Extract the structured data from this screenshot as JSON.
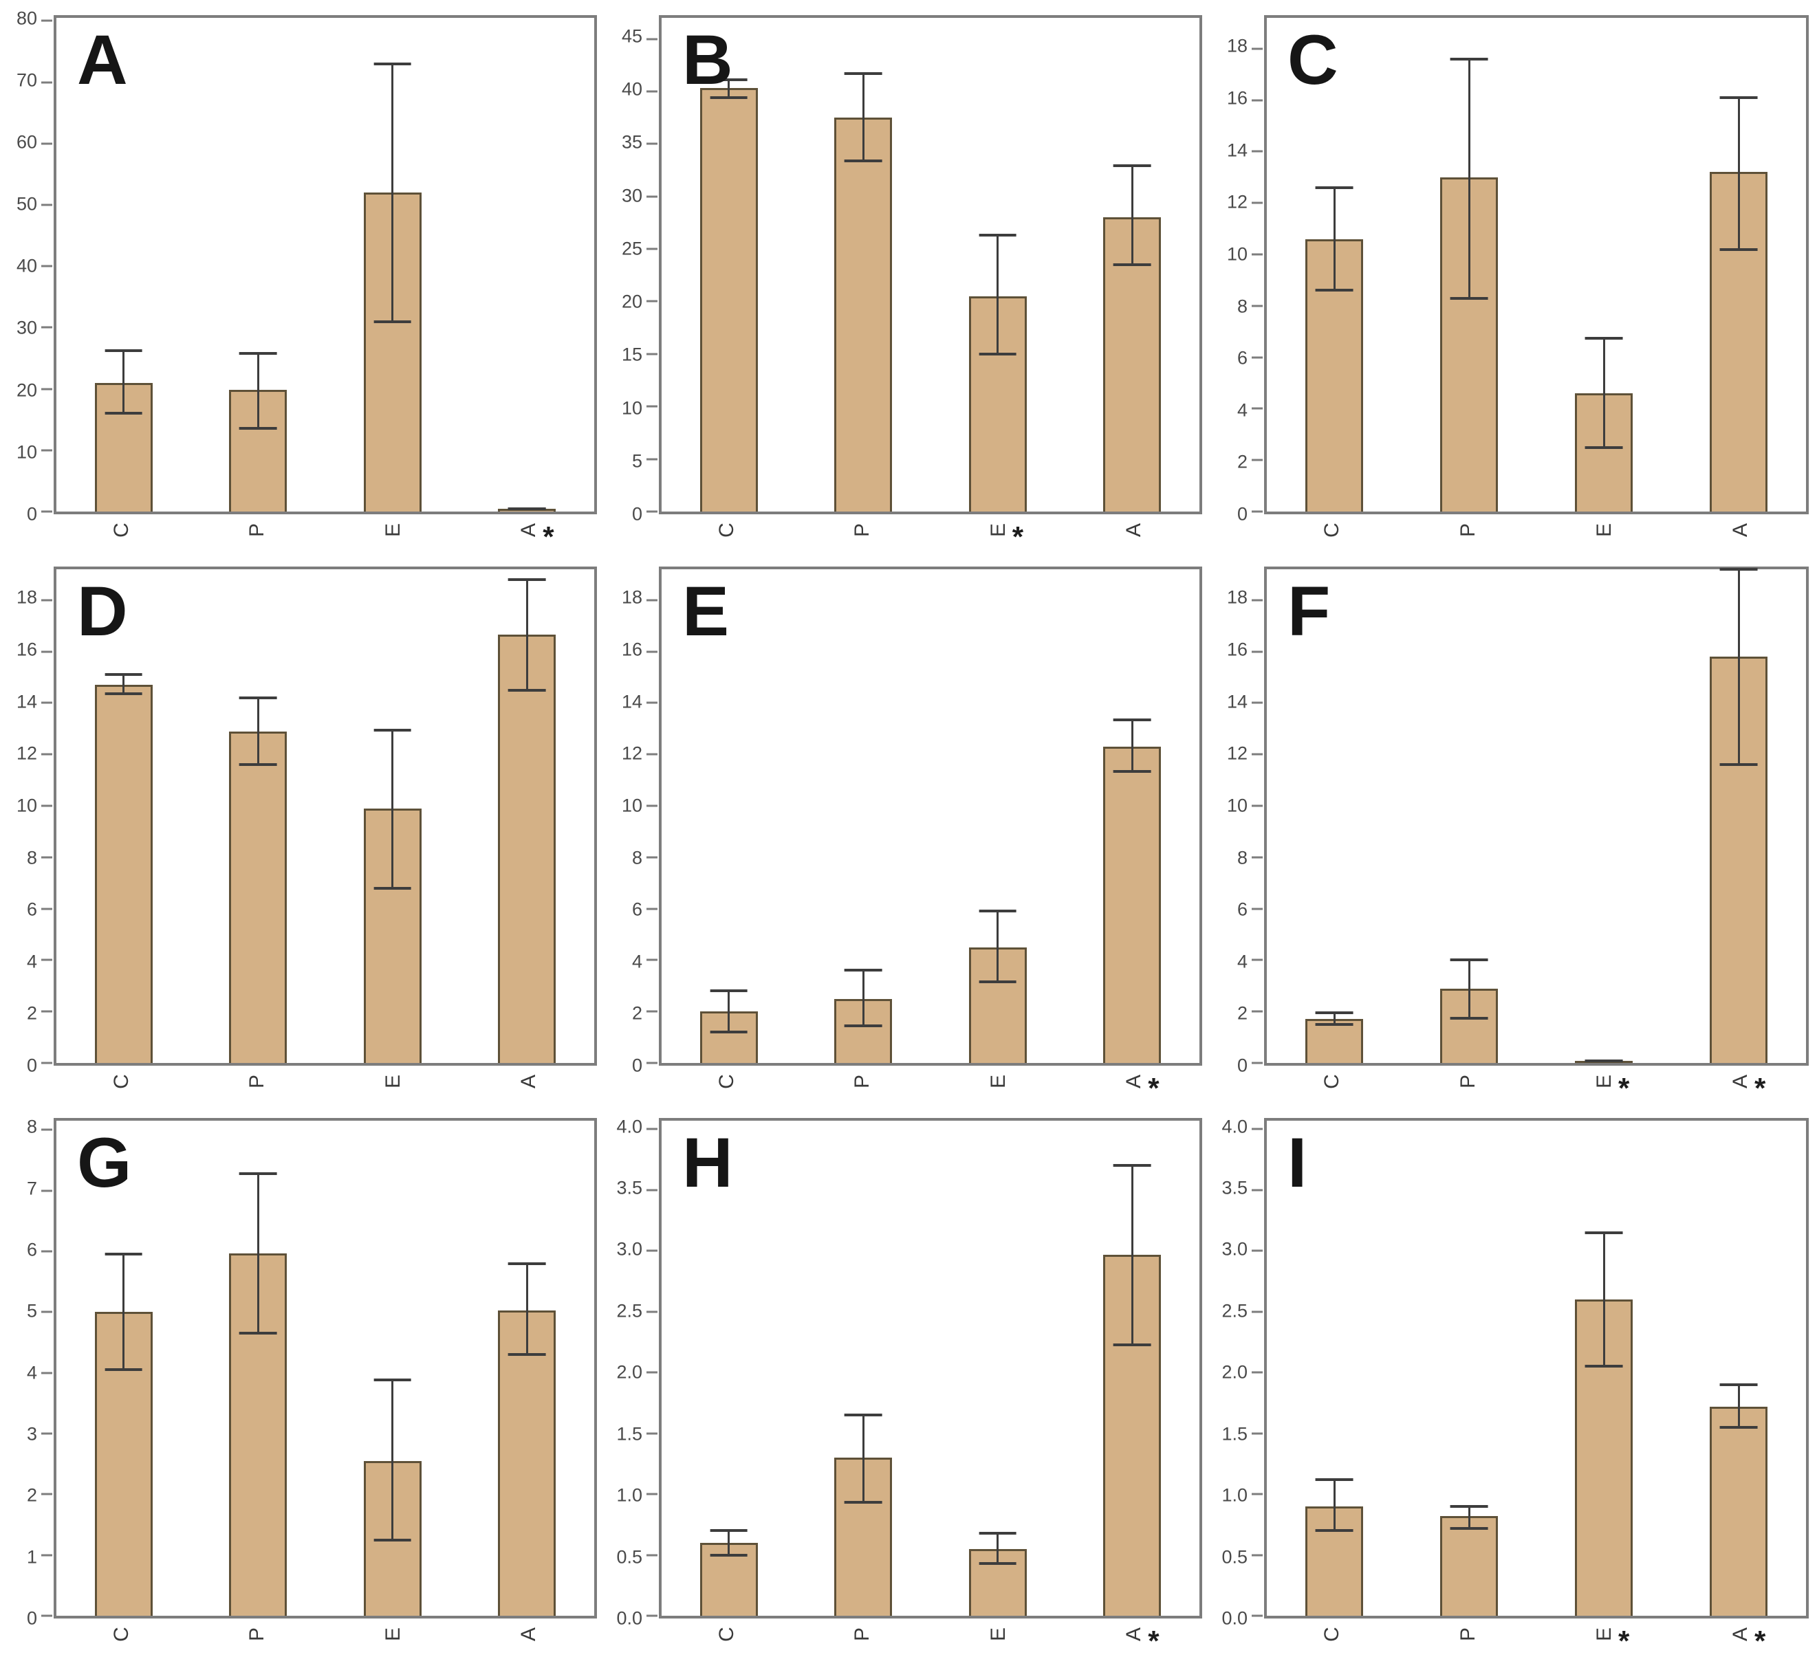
{
  "colors": {
    "bar_fill": "#d4b186",
    "bar_edge": "#5e5138",
    "error_bar": "#3d3d3d",
    "axis": "#7d7d7d",
    "tick_text": "#4a4a4a",
    "panel_letter": "#161616",
    "background": "#ffffff"
  },
  "sig_marker": "*",
  "chart_data": [
    {
      "panel": "A",
      "type": "bar",
      "label": "A",
      "categories": [
        "C",
        "P",
        "E",
        "A"
      ],
      "values": [
        21.0,
        19.8,
        52.0,
        0.4
      ],
      "error_low": [
        16.0,
        13.6,
        31.0,
        0.4
      ],
      "error_high": [
        26.2,
        25.8,
        73.0,
        0.4
      ],
      "asterisk": [
        false,
        false,
        false,
        true
      ],
      "ylim": [
        0,
        80.5
      ],
      "yticks": [
        "0",
        "10",
        "20",
        "30",
        "40",
        "50",
        "60",
        "70",
        "80"
      ],
      "xlabel": "",
      "ylabel": "",
      "legend": "none",
      "grid": false
    },
    {
      "panel": "B",
      "type": "bar",
      "label": "B",
      "categories": [
        "C",
        "P",
        "E",
        "A"
      ],
      "values": [
        40.3,
        37.5,
        20.5,
        28.0
      ],
      "error_low": [
        39.4,
        33.4,
        15.0,
        23.5
      ],
      "error_high": [
        41.1,
        41.7,
        26.3,
        32.9
      ],
      "asterisk": [
        false,
        false,
        true,
        false
      ],
      "ylim": [
        0,
        47
      ],
      "yticks": [
        "0",
        "5",
        "10",
        "15",
        "20",
        "25",
        "30",
        "35",
        "40",
        "45"
      ],
      "xlabel": "",
      "ylabel": "",
      "legend": "none",
      "grid": false
    },
    {
      "panel": "C",
      "type": "bar",
      "label": "C",
      "categories": [
        "C",
        "P",
        "E",
        "A"
      ],
      "values": [
        10.6,
        13.0,
        4.6,
        13.2
      ],
      "error_low": [
        8.6,
        8.3,
        2.5,
        10.2
      ],
      "error_high": [
        12.6,
        17.6,
        6.75,
        16.1
      ],
      "asterisk": [
        false,
        false,
        false,
        false
      ],
      "ylim": [
        0,
        19.2
      ],
      "yticks": [
        "0",
        "2",
        "4",
        "6",
        "8",
        "10",
        "12",
        "14",
        "16",
        "18"
      ],
      "xlabel": "",
      "ylabel": "",
      "legend": "none",
      "grid": false
    },
    {
      "panel": "D",
      "type": "bar",
      "label": "D",
      "categories": [
        "C",
        "P",
        "E",
        "A"
      ],
      "values": [
        14.7,
        12.9,
        9.9,
        16.65
      ],
      "error_low": [
        14.35,
        11.6,
        6.8,
        14.5
      ],
      "error_high": [
        15.1,
        14.2,
        12.95,
        18.8
      ],
      "asterisk": [
        false,
        false,
        false,
        false
      ],
      "ylim": [
        0,
        19.2
      ],
      "yticks": [
        "0",
        "2",
        "4",
        "6",
        "8",
        "10",
        "12",
        "14",
        "16",
        "18"
      ],
      "xlabel": "",
      "ylabel": "",
      "legend": "none",
      "grid": false
    },
    {
      "panel": "E",
      "type": "bar",
      "label": "E",
      "categories": [
        "C",
        "P",
        "E",
        "A"
      ],
      "values": [
        2.0,
        2.5,
        4.5,
        12.3
      ],
      "error_low": [
        1.2,
        1.45,
        3.15,
        11.35
      ],
      "error_high": [
        2.8,
        3.6,
        5.9,
        13.35
      ],
      "asterisk": [
        false,
        false,
        false,
        true
      ],
      "ylim": [
        0,
        19.2
      ],
      "yticks": [
        "0",
        "2",
        "4",
        "6",
        "8",
        "10",
        "12",
        "14",
        "16",
        "18"
      ],
      "xlabel": "",
      "ylabel": "",
      "legend": "none",
      "grid": false
    },
    {
      "panel": "F",
      "type": "bar",
      "label": "F",
      "categories": [
        "C",
        "P",
        "E",
        "A"
      ],
      "values": [
        1.7,
        2.9,
        0.07,
        15.8
      ],
      "error_low": [
        1.5,
        1.75,
        0.07,
        11.6
      ],
      "error_high": [
        1.95,
        4.0,
        0.07,
        19.9
      ],
      "asterisk": [
        false,
        false,
        true,
        true
      ],
      "ylim": [
        0,
        19.2
      ],
      "yticks": [
        "0",
        "2",
        "4",
        "6",
        "8",
        "10",
        "12",
        "14",
        "16",
        "18"
      ],
      "xlabel": "",
      "ylabel": "",
      "legend": "none",
      "grid": false
    },
    {
      "panel": "G",
      "type": "bar",
      "label": "G",
      "categories": [
        "C",
        "P",
        "E",
        "A"
      ],
      "values": [
        5.0,
        5.97,
        2.55,
        5.03
      ],
      "error_low": [
        4.05,
        4.65,
        1.25,
        4.3
      ],
      "error_high": [
        5.95,
        7.28,
        3.88,
        5.8
      ],
      "asterisk": [
        false,
        false,
        false,
        false
      ],
      "ylim": [
        0,
        8.15
      ],
      "yticks": [
        "0",
        "1",
        "2",
        "3",
        "4",
        "5",
        "6",
        "7",
        "8"
      ],
      "xlabel": "",
      "ylabel": "",
      "legend": "none",
      "grid": false
    },
    {
      "panel": "H",
      "type": "bar",
      "label": "H",
      "categories": [
        "C",
        "P",
        "E",
        "A"
      ],
      "values": [
        0.6,
        1.3,
        0.55,
        2.97
      ],
      "error_low": [
        0.5,
        0.93,
        0.43,
        2.23
      ],
      "error_high": [
        0.7,
        1.65,
        0.68,
        3.7
      ],
      "asterisk": [
        false,
        false,
        false,
        true
      ],
      "ylim": [
        0,
        4.07
      ],
      "yticks": [
        "0.0",
        "0.5",
        "1.0",
        "1.5",
        "2.0",
        "2.5",
        "3.0",
        "3.5",
        "4.0"
      ],
      "xlabel": "",
      "ylabel": "",
      "legend": "none",
      "grid": false
    },
    {
      "panel": "I",
      "type": "bar",
      "label": "I",
      "categories": [
        "C",
        "P",
        "E",
        "A"
      ],
      "values": [
        0.9,
        0.82,
        2.6,
        1.72
      ],
      "error_low": [
        0.7,
        0.72,
        2.05,
        1.55
      ],
      "error_high": [
        1.12,
        0.9,
        3.15,
        1.9
      ],
      "asterisk": [
        false,
        false,
        true,
        true
      ],
      "ylim": [
        0,
        4.07
      ],
      "yticks": [
        "0.0",
        "0.5",
        "1.0",
        "1.5",
        "2.0",
        "2.5",
        "3.0",
        "3.5",
        "4.0"
      ],
      "xlabel": "",
      "ylabel": "",
      "legend": "none",
      "grid": false
    }
  ]
}
